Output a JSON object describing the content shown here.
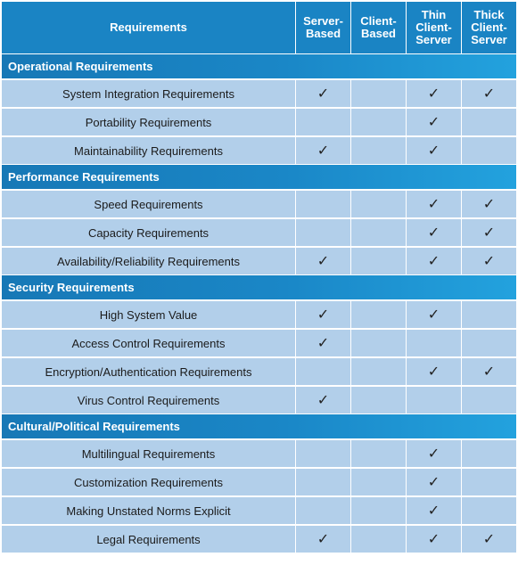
{
  "columns": [
    "Requirements",
    "Server-\nBased",
    "Client-\nBased",
    "Thin\nClient-\nServer",
    "Thick\nClient-\nServer"
  ],
  "check_symbol": "✓",
  "sections": [
    {
      "title": "Operational Requirements",
      "rows": [
        {
          "name": "System Integration Requirements",
          "checks": [
            true,
            false,
            true,
            true
          ]
        },
        {
          "name": "Portability Requirements",
          "checks": [
            false,
            false,
            true,
            false
          ]
        },
        {
          "name": "Maintainability Requirements",
          "checks": [
            true,
            false,
            true,
            false
          ]
        }
      ]
    },
    {
      "title": "Performance Requirements",
      "rows": [
        {
          "name": "Speed Requirements",
          "checks": [
            false,
            false,
            true,
            true
          ]
        },
        {
          "name": "Capacity Requirements",
          "checks": [
            false,
            false,
            true,
            true
          ]
        },
        {
          "name": "Availability/Reliability Requirements",
          "checks": [
            true,
            false,
            true,
            true
          ]
        }
      ]
    },
    {
      "title": "Security Requirements",
      "rows": [
        {
          "name": "High System Value",
          "checks": [
            true,
            false,
            true,
            false
          ]
        },
        {
          "name": "Access Control Requirements",
          "checks": [
            true,
            false,
            false,
            false
          ]
        },
        {
          "name": "Encryption/Authentication Requirements",
          "checks": [
            false,
            false,
            true,
            true
          ]
        },
        {
          "name": "Virus Control Requirements",
          "checks": [
            true,
            false,
            false,
            false
          ]
        }
      ]
    },
    {
      "title": "Cultural/Political Requirements",
      "rows": [
        {
          "name": "Multilingual Requirements",
          "checks": [
            false,
            false,
            true,
            false
          ]
        },
        {
          "name": "Customization Requirements",
          "checks": [
            false,
            false,
            true,
            false
          ]
        },
        {
          "name": "Making Unstated Norms Explicit",
          "checks": [
            false,
            false,
            true,
            false
          ]
        },
        {
          "name": "Legal Requirements",
          "checks": [
            true,
            false,
            true,
            true
          ]
        }
      ]
    }
  ]
}
